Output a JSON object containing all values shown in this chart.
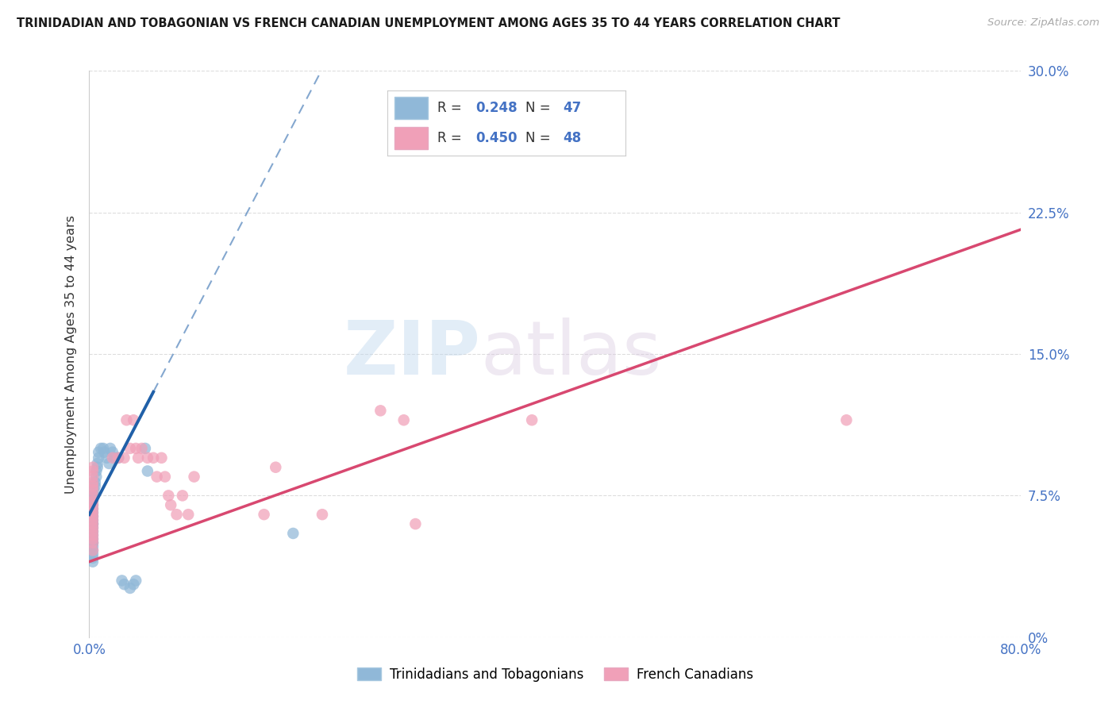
{
  "title": "TRINIDADIAN AND TOBAGONIAN VS FRENCH CANADIAN UNEMPLOYMENT AMONG AGES 35 TO 44 YEARS CORRELATION CHART",
  "source": "Source: ZipAtlas.com",
  "ylabel": "Unemployment Among Ages 35 to 44 years",
  "xlim": [
    0.0,
    0.8
  ],
  "ylim": [
    0.0,
    0.3
  ],
  "yticks": [
    0.0,
    0.075,
    0.15,
    0.225,
    0.3
  ],
  "ytick_labels": [
    "0%",
    "7.5%",
    "15.0%",
    "22.5%",
    "30.0%"
  ],
  "xtick_labels_show": [
    "0.0%",
    "80.0%"
  ],
  "xtick_positions_show": [
    0.0,
    0.8
  ],
  "legend_label1": "Trinidadians and Tobagonians",
  "legend_label2": "French Canadians",
  "R1": "0.248",
  "N1": "47",
  "R2": "0.450",
  "N2": "48",
  "blue_color": "#90B8D8",
  "pink_color": "#F0A0B8",
  "blue_line_color": "#2060A8",
  "pink_line_color": "#D84870",
  "axis_label_color": "#4472C4",
  "watermark_zip": "ZIP",
  "watermark_atlas": "atlas",
  "blue_scatter_x": [
    0.003,
    0.003,
    0.003,
    0.003,
    0.003,
    0.003,
    0.003,
    0.003,
    0.003,
    0.003,
    0.003,
    0.003,
    0.003,
    0.003,
    0.003,
    0.003,
    0.003,
    0.003,
    0.003,
    0.003,
    0.004,
    0.004,
    0.005,
    0.005,
    0.006,
    0.006,
    0.007,
    0.007,
    0.008,
    0.008,
    0.01,
    0.012,
    0.013,
    0.015,
    0.017,
    0.018,
    0.02,
    0.022,
    0.025,
    0.028,
    0.03,
    0.035,
    0.038,
    0.04,
    0.048,
    0.05,
    0.175
  ],
  "blue_scatter_y": [
    0.04,
    0.042,
    0.044,
    0.046,
    0.048,
    0.05,
    0.05,
    0.052,
    0.054,
    0.056,
    0.058,
    0.06,
    0.06,
    0.062,
    0.064,
    0.066,
    0.068,
    0.07,
    0.072,
    0.075,
    0.075,
    0.078,
    0.08,
    0.082,
    0.085,
    0.088,
    0.09,
    0.092,
    0.095,
    0.098,
    0.1,
    0.1,
    0.098,
    0.095,
    0.092,
    0.1,
    0.098,
    0.095,
    0.095,
    0.03,
    0.028,
    0.026,
    0.028,
    0.03,
    0.1,
    0.088,
    0.055
  ],
  "pink_scatter_x": [
    0.003,
    0.003,
    0.003,
    0.003,
    0.003,
    0.003,
    0.003,
    0.003,
    0.003,
    0.003,
    0.003,
    0.003,
    0.003,
    0.003,
    0.003,
    0.003,
    0.003,
    0.003,
    0.003,
    0.003,
    0.02,
    0.025,
    0.03,
    0.032,
    0.035,
    0.038,
    0.04,
    0.042,
    0.045,
    0.05,
    0.055,
    0.058,
    0.062,
    0.065,
    0.068,
    0.07,
    0.075,
    0.08,
    0.085,
    0.09,
    0.15,
    0.16,
    0.2,
    0.25,
    0.27,
    0.28,
    0.38,
    0.65
  ],
  "pink_scatter_y": [
    0.046,
    0.05,
    0.052,
    0.054,
    0.056,
    0.058,
    0.06,
    0.062,
    0.064,
    0.066,
    0.068,
    0.07,
    0.072,
    0.075,
    0.078,
    0.08,
    0.082,
    0.085,
    0.088,
    0.09,
    0.095,
    0.095,
    0.095,
    0.115,
    0.1,
    0.115,
    0.1,
    0.095,
    0.1,
    0.095,
    0.095,
    0.085,
    0.095,
    0.085,
    0.075,
    0.07,
    0.065,
    0.075,
    0.065,
    0.085,
    0.065,
    0.09,
    0.065,
    0.12,
    0.115,
    0.06,
    0.115,
    0.115
  ],
  "blue_trendline_x0": 0.0,
  "blue_trendline_x_solid_end": 0.055,
  "blue_trendline_x1": 0.8,
  "pink_trendline_x0": 0.0,
  "pink_trendline_x1": 0.8,
  "grid_color": "#DDDDDD",
  "spine_color": "#CCCCCC"
}
